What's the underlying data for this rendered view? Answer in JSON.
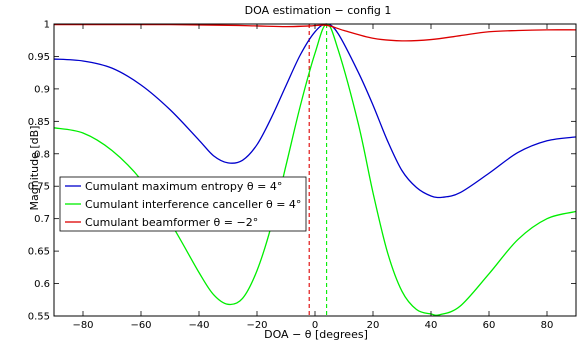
{
  "chart_data": {
    "type": "line",
    "title": "DOA estimation − config 1",
    "xlabel": "DOA − θ [degrees]",
    "ylabel": "Magnitude [dB]",
    "xlim": [
      -90,
      90
    ],
    "ylim": [
      0.55,
      1.0
    ],
    "xticks": [
      -80,
      -60,
      -40,
      -20,
      0,
      20,
      40,
      60,
      80
    ],
    "xtick_labels": [
      "−80",
      "−60",
      "−40",
      "−20",
      "0",
      "20",
      "40",
      "60",
      "80"
    ],
    "yticks": [
      0.55,
      0.6,
      0.65,
      0.7,
      0.75,
      0.8,
      0.85,
      0.9,
      0.95,
      1.0
    ],
    "ytick_labels": [
      "0.55",
      "0.6",
      "0.65",
      "0.7",
      "0.75",
      "0.8",
      "0.85",
      "0.9",
      "0.95",
      "1"
    ],
    "grid": false,
    "legend_position": "middle-left",
    "series": [
      {
        "name": "Cumulant maximum entropy θ = 4°",
        "color": "#0000cc",
        "x": [
          -90,
          -80,
          -70,
          -60,
          -50,
          -40,
          -35,
          -30,
          -25,
          -20,
          -15,
          -10,
          -5,
          0,
          4,
          8,
          15,
          20,
          25,
          30,
          35,
          40,
          44,
          50,
          60,
          70,
          80,
          90
        ],
        "y": [
          0.946,
          0.943,
          0.932,
          0.906,
          0.868,
          0.821,
          0.797,
          0.786,
          0.79,
          0.814,
          0.856,
          0.905,
          0.953,
          0.988,
          1.0,
          0.985,
          0.925,
          0.875,
          0.82,
          0.774,
          0.748,
          0.735,
          0.733,
          0.74,
          0.77,
          0.802,
          0.82,
          0.826
        ]
      },
      {
        "name": "Cumulant interference canceller θ = 4°",
        "color": "#00ee00",
        "x": [
          -90,
          -80,
          -70,
          -60,
          -50,
          -40,
          -35,
          -30,
          -25,
          -20,
          -15,
          -10,
          -5,
          0,
          4,
          8,
          15,
          20,
          25,
          30,
          35,
          40,
          43,
          50,
          60,
          70,
          80,
          90
        ],
        "y": [
          0.84,
          0.832,
          0.805,
          0.76,
          0.695,
          0.617,
          0.583,
          0.568,
          0.577,
          0.62,
          0.69,
          0.782,
          0.875,
          0.955,
          1.0,
          0.96,
          0.845,
          0.74,
          0.648,
          0.588,
          0.56,
          0.553,
          0.552,
          0.565,
          0.615,
          0.668,
          0.7,
          0.711
        ]
      },
      {
        "name": "Cumulant beamformer θ = −2°",
        "color": "#dd0000",
        "x": [
          -90,
          -70,
          -50,
          -30,
          -20,
          -10,
          -2,
          4,
          10,
          20,
          30,
          40,
          50,
          60,
          70,
          80,
          90
        ],
        "y": [
          0.999,
          0.999,
          0.999,
          0.998,
          0.997,
          0.996,
          0.997,
          0.998,
          0.99,
          0.978,
          0.974,
          0.976,
          0.982,
          0.988,
          0.99,
          0.991,
          0.991
        ]
      }
    ],
    "reference_lines": [
      {
        "x": -2,
        "color": "#dd0000",
        "style": "dashed"
      },
      {
        "x": 4,
        "color": "#00ee00",
        "style": "dashed"
      }
    ]
  }
}
